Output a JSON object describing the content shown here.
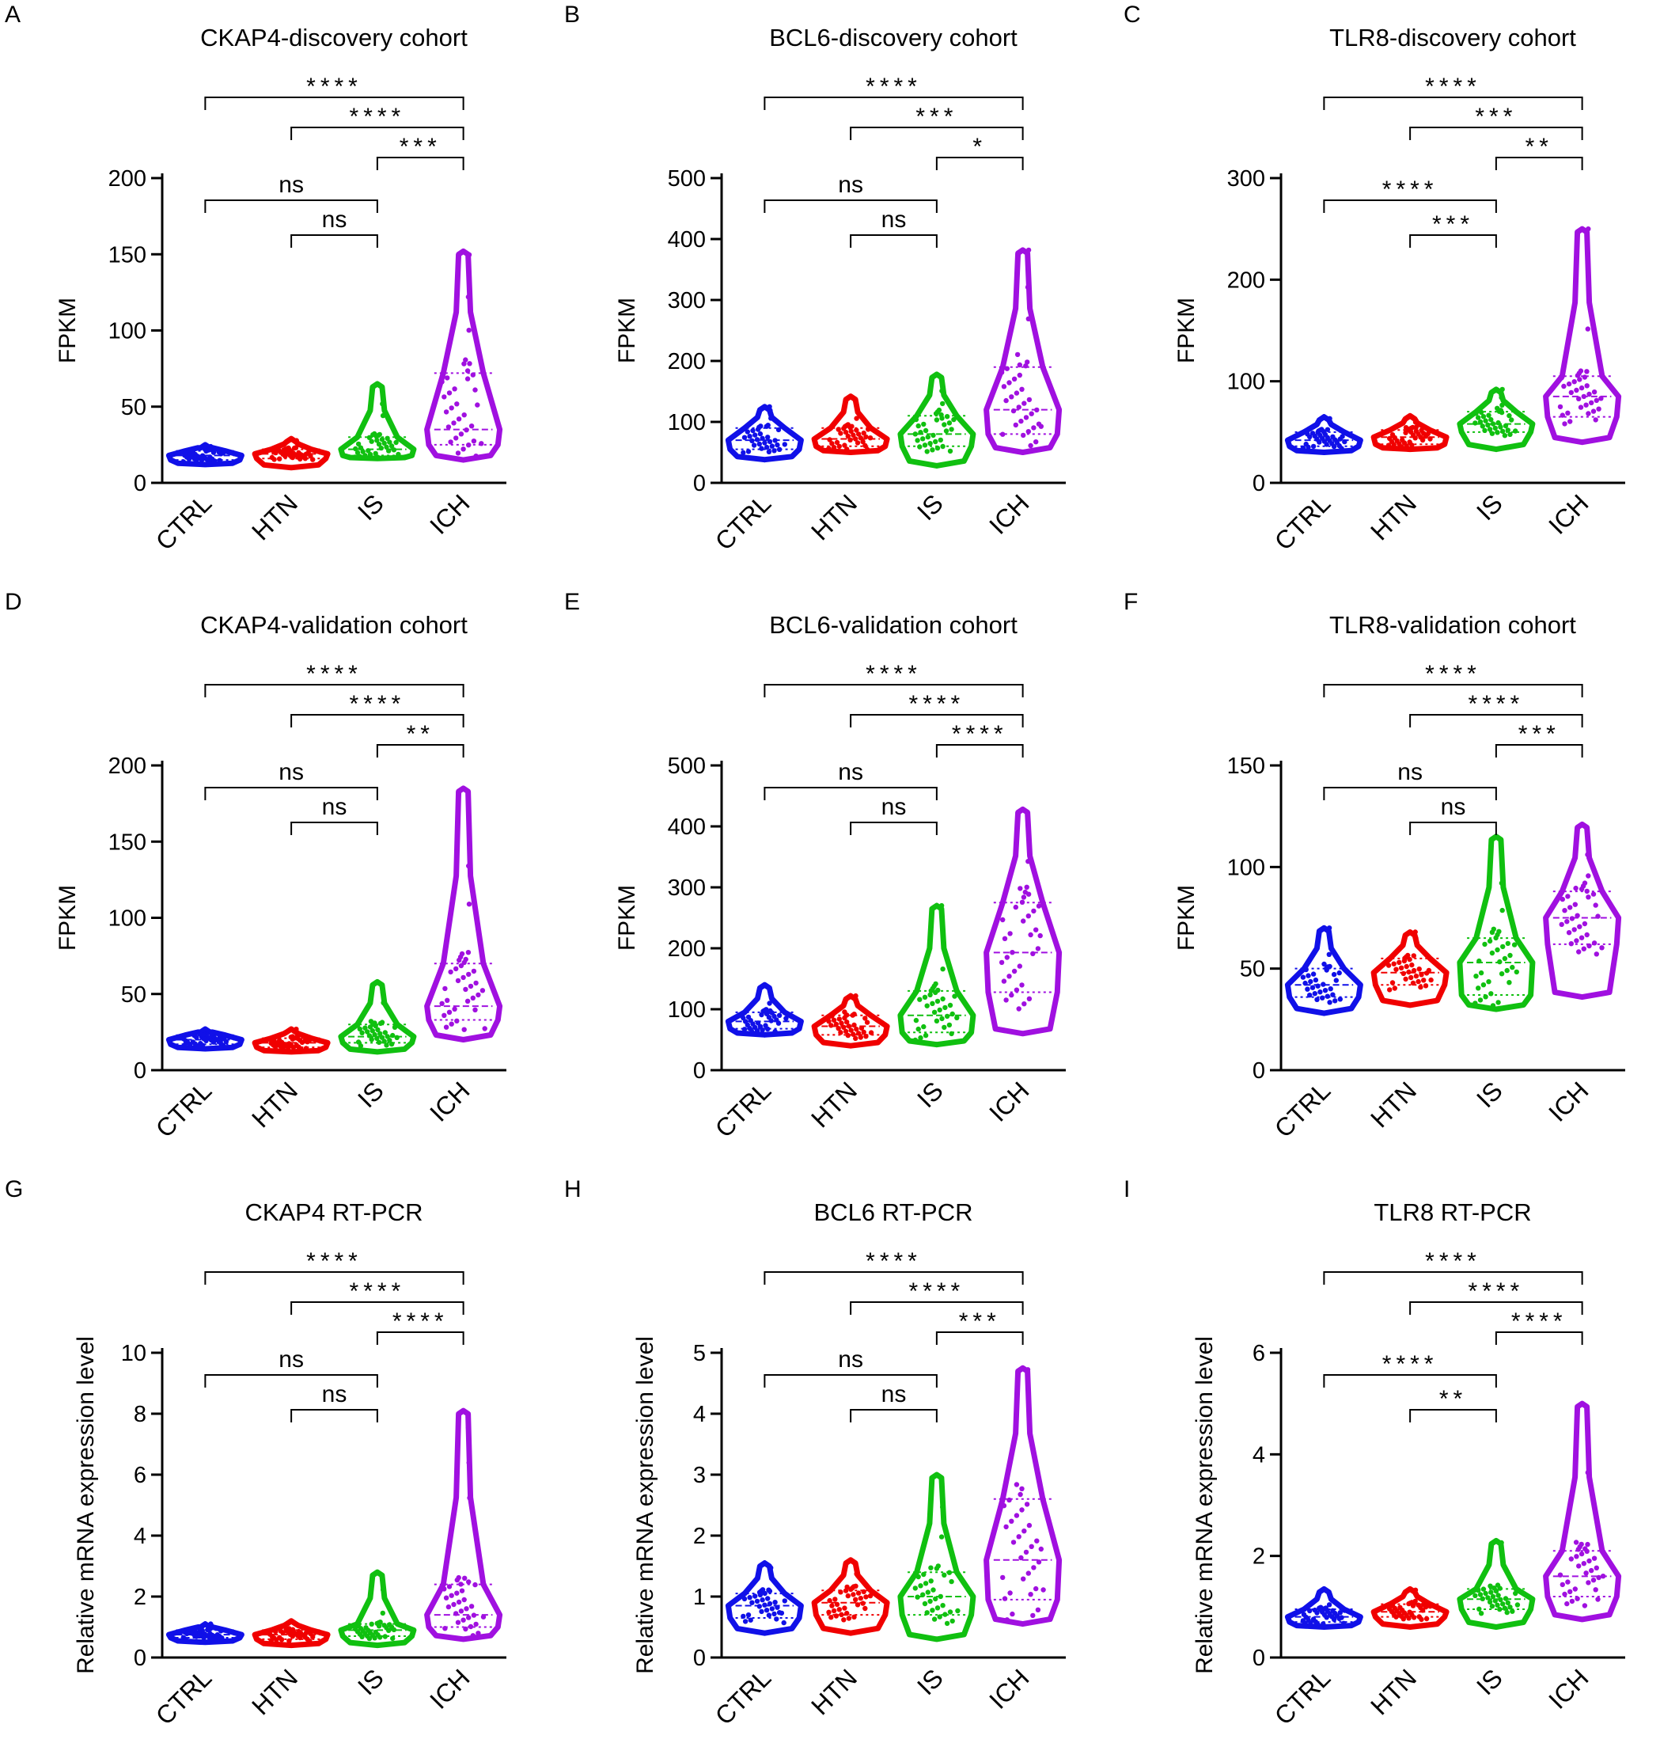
{
  "figure": {
    "groups": [
      "CTRL",
      "HTN",
      "IS",
      "ICH"
    ],
    "colors": {
      "CTRL": "#1010e8",
      "HTN": "#f00000",
      "IS": "#10c010",
      "ICH": "#a010e0"
    }
  },
  "chart_data": [
    {
      "panel": "A",
      "type": "violin",
      "title": "CKAP4-discovery cohort",
      "xlabel": "",
      "ylabel": "FPKM",
      "ylim": [
        0,
        200
      ],
      "yticks": [
        "0",
        "50",
        "100",
        "150",
        "200"
      ],
      "categories": [
        "CTRL",
        "HTN",
        "IS",
        "ICH"
      ],
      "series": [
        {
          "name": "CTRL",
          "min": 12,
          "q1": 15,
          "median": 18,
          "q3": 21,
          "max": 25
        },
        {
          "name": "HTN",
          "min": 10,
          "q1": 16,
          "median": 19,
          "q3": 22,
          "max": 29
        },
        {
          "name": "IS",
          "min": 16,
          "q1": 18,
          "median": 22,
          "q3": 30,
          "max": 65
        },
        {
          "name": "ICH",
          "min": 15,
          "q1": 25,
          "median": 35,
          "q3": 72,
          "max": 152
        }
      ],
      "comparisons": [
        {
          "from": "CTRL",
          "to": "ICH",
          "label": "****"
        },
        {
          "from": "HTN",
          "to": "ICH",
          "label": "****"
        },
        {
          "from": "IS",
          "to": "ICH",
          "label": "***"
        },
        {
          "from": "CTRL",
          "to": "IS",
          "label": "ns"
        },
        {
          "from": "HTN",
          "to": "IS",
          "label": "ns"
        }
      ]
    },
    {
      "panel": "B",
      "type": "violin",
      "title": "BCL6-discovery cohort",
      "xlabel": "",
      "ylabel": "FPKM",
      "ylim": [
        0,
        500
      ],
      "yticks": [
        "0",
        "100",
        "200",
        "300",
        "400",
        "500"
      ],
      "categories": [
        "CTRL",
        "HTN",
        "IS",
        "ICH"
      ],
      "series": [
        {
          "name": "CTRL",
          "min": 38,
          "q1": 55,
          "median": 70,
          "q3": 90,
          "max": 125
        },
        {
          "name": "HTN",
          "min": 50,
          "q1": 60,
          "median": 72,
          "q3": 90,
          "max": 142
        },
        {
          "name": "IS",
          "min": 28,
          "q1": 60,
          "median": 80,
          "q3": 110,
          "max": 178
        },
        {
          "name": "ICH",
          "min": 50,
          "q1": 80,
          "median": 120,
          "q3": 190,
          "max": 382
        }
      ],
      "comparisons": [
        {
          "from": "CTRL",
          "to": "ICH",
          "label": "****"
        },
        {
          "from": "HTN",
          "to": "ICH",
          "label": "***"
        },
        {
          "from": "IS",
          "to": "ICH",
          "label": "*"
        },
        {
          "from": "CTRL",
          "to": "IS",
          "label": "ns"
        },
        {
          "from": "HTN",
          "to": "IS",
          "label": "ns"
        }
      ]
    },
    {
      "panel": "C",
      "type": "violin",
      "title": "TLR8-discovery cohort",
      "xlabel": "",
      "ylabel": "FPKM",
      "ylim": [
        0,
        300
      ],
      "yticks": [
        "0",
        "100",
        "200",
        "300"
      ],
      "categories": [
        "CTRL",
        "HTN",
        "IS",
        "ICH"
      ],
      "series": [
        {
          "name": "CTRL",
          "min": 30,
          "q1": 36,
          "median": 42,
          "q3": 50,
          "max": 65
        },
        {
          "name": "HTN",
          "min": 33,
          "q1": 38,
          "median": 45,
          "q3": 52,
          "max": 66
        },
        {
          "name": "IS",
          "min": 33,
          "q1": 50,
          "median": 58,
          "q3": 70,
          "max": 92
        },
        {
          "name": "ICH",
          "min": 40,
          "q1": 65,
          "median": 85,
          "q3": 105,
          "max": 250
        }
      ],
      "comparisons": [
        {
          "from": "CTRL",
          "to": "ICH",
          "label": "****"
        },
        {
          "from": "HTN",
          "to": "ICH",
          "label": "***"
        },
        {
          "from": "IS",
          "to": "ICH",
          "label": "**"
        },
        {
          "from": "CTRL",
          "to": "IS",
          "label": "****"
        },
        {
          "from": "HTN",
          "to": "IS",
          "label": "***"
        }
      ]
    },
    {
      "panel": "D",
      "type": "violin",
      "title": "CKAP4-validation cohort",
      "xlabel": "",
      "ylabel": "FPKM",
      "ylim": [
        0,
        200
      ],
      "yticks": [
        "0",
        "50",
        "100",
        "150",
        "200"
      ],
      "categories": [
        "CTRL",
        "HTN",
        "IS",
        "ICH"
      ],
      "series": [
        {
          "name": "CTRL",
          "min": 14,
          "q1": 17,
          "median": 20,
          "q3": 23,
          "max": 27
        },
        {
          "name": "HTN",
          "min": 12,
          "q1": 15,
          "median": 18,
          "q3": 21,
          "max": 27
        },
        {
          "name": "IS",
          "min": 12,
          "q1": 18,
          "median": 22,
          "q3": 30,
          "max": 58
        },
        {
          "name": "ICH",
          "min": 20,
          "q1": 33,
          "median": 42,
          "q3": 70,
          "max": 185
        }
      ],
      "comparisons": [
        {
          "from": "CTRL",
          "to": "ICH",
          "label": "****"
        },
        {
          "from": "HTN",
          "to": "ICH",
          "label": "****"
        },
        {
          "from": "IS",
          "to": "ICH",
          "label": "**"
        },
        {
          "from": "CTRL",
          "to": "IS",
          "label": "ns"
        },
        {
          "from": "HTN",
          "to": "IS",
          "label": "ns"
        }
      ]
    },
    {
      "panel": "E",
      "type": "violin",
      "title": "BCL6-validation cohort",
      "xlabel": "",
      "ylabel": "FPKM",
      "ylim": [
        0,
        500
      ],
      "yticks": [
        "0",
        "100",
        "200",
        "300",
        "400",
        "500"
      ],
      "categories": [
        "CTRL",
        "HTN",
        "IS",
        "ICH"
      ],
      "series": [
        {
          "name": "CTRL",
          "min": 58,
          "q1": 68,
          "median": 80,
          "q3": 95,
          "max": 140
        },
        {
          "name": "HTN",
          "min": 40,
          "q1": 58,
          "median": 72,
          "q3": 90,
          "max": 122
        },
        {
          "name": "IS",
          "min": 42,
          "q1": 62,
          "median": 90,
          "q3": 130,
          "max": 270
        },
        {
          "name": "ICH",
          "min": 60,
          "q1": 128,
          "median": 193,
          "q3": 275,
          "max": 428
        }
      ],
      "comparisons": [
        {
          "from": "CTRL",
          "to": "ICH",
          "label": "****"
        },
        {
          "from": "HTN",
          "to": "ICH",
          "label": "****"
        },
        {
          "from": "IS",
          "to": "ICH",
          "label": "****"
        },
        {
          "from": "CTRL",
          "to": "IS",
          "label": "ns"
        },
        {
          "from": "HTN",
          "to": "IS",
          "label": "ns"
        }
      ]
    },
    {
      "panel": "F",
      "type": "violin",
      "title": "TLR8-validation cohort",
      "xlabel": "",
      "ylabel": "FPKM",
      "ylim": [
        0,
        150
      ],
      "yticks": [
        "0",
        "50",
        "100",
        "150"
      ],
      "categories": [
        "CTRL",
        "HTN",
        "IS",
        "ICH"
      ],
      "series": [
        {
          "name": "CTRL",
          "min": 28,
          "q1": 36,
          "median": 42,
          "q3": 50,
          "max": 70
        },
        {
          "name": "HTN",
          "min": 32,
          "q1": 42,
          "median": 48,
          "q3": 55,
          "max": 68
        },
        {
          "name": "IS",
          "min": 30,
          "q1": 37,
          "median": 53,
          "q3": 65,
          "max": 115
        },
        {
          "name": "ICH",
          "min": 36,
          "q1": 62,
          "median": 75,
          "q3": 88,
          "max": 121
        }
      ],
      "comparisons": [
        {
          "from": "CTRL",
          "to": "ICH",
          "label": "****"
        },
        {
          "from": "HTN",
          "to": "ICH",
          "label": "****"
        },
        {
          "from": "IS",
          "to": "ICH",
          "label": "***"
        },
        {
          "from": "CTRL",
          "to": "IS",
          "label": "ns"
        },
        {
          "from": "HTN",
          "to": "IS",
          "label": "ns"
        }
      ]
    },
    {
      "panel": "G",
      "type": "violin",
      "title": "CKAP4  RT-PCR",
      "xlabel": "",
      "ylabel": "Relative mRNA expression level",
      "ylim": [
        0,
        10
      ],
      "yticks": [
        "0",
        "2",
        "4",
        "6",
        "8",
        "10"
      ],
      "categories": [
        "CTRL",
        "HTN",
        "IS",
        "ICH"
      ],
      "series": [
        {
          "name": "CTRL",
          "min": 0.5,
          "q1": 0.65,
          "median": 0.75,
          "q3": 0.9,
          "max": 1.1
        },
        {
          "name": "HTN",
          "min": 0.4,
          "q1": 0.6,
          "median": 0.75,
          "q3": 0.9,
          "max": 1.2
        },
        {
          "name": "IS",
          "min": 0.4,
          "q1": 0.7,
          "median": 0.9,
          "q3": 1.1,
          "max": 2.8
        },
        {
          "name": "ICH",
          "min": 0.6,
          "q1": 1.0,
          "median": 1.4,
          "q3": 2.4,
          "max": 8.1
        }
      ],
      "comparisons": [
        {
          "from": "CTRL",
          "to": "ICH",
          "label": "****"
        },
        {
          "from": "HTN",
          "to": "ICH",
          "label": "****"
        },
        {
          "from": "IS",
          "to": "ICH",
          "label": "****"
        },
        {
          "from": "CTRL",
          "to": "IS",
          "label": "ns"
        },
        {
          "from": "HTN",
          "to": "IS",
          "label": "ns"
        }
      ]
    },
    {
      "panel": "H",
      "type": "violin",
      "title": "BCL6  RT-PCR",
      "xlabel": "",
      "ylabel": "Relative mRNA expression level",
      "ylim": [
        0,
        5
      ],
      "yticks": [
        "0",
        "1",
        "2",
        "3",
        "4",
        "5"
      ],
      "categories": [
        "CTRL",
        "HTN",
        "IS",
        "ICH"
      ],
      "series": [
        {
          "name": "CTRL",
          "min": 0.4,
          "q1": 0.65,
          "median": 0.85,
          "q3": 1.05,
          "max": 1.55
        },
        {
          "name": "HTN",
          "min": 0.4,
          "q1": 0.7,
          "median": 0.9,
          "q3": 1.1,
          "max": 1.6
        },
        {
          "name": "IS",
          "min": 0.3,
          "q1": 0.7,
          "median": 1.0,
          "q3": 1.4,
          "max": 3.0
        },
        {
          "name": "ICH",
          "min": 0.55,
          "q1": 0.95,
          "median": 1.6,
          "q3": 2.6,
          "max": 4.75
        }
      ],
      "comparisons": [
        {
          "from": "CTRL",
          "to": "ICH",
          "label": "****"
        },
        {
          "from": "HTN",
          "to": "ICH",
          "label": "****"
        },
        {
          "from": "IS",
          "to": "ICH",
          "label": "***"
        },
        {
          "from": "CTRL",
          "to": "IS",
          "label": "ns"
        },
        {
          "from": "HTN",
          "to": "IS",
          "label": "ns"
        }
      ]
    },
    {
      "panel": "I",
      "type": "violin",
      "title": "TLR8  RT-PCR",
      "xlabel": "",
      "ylabel": "Relative mRNA expression level",
      "ylim": [
        0,
        6
      ],
      "yticks": [
        "0",
        "2",
        "4",
        "6"
      ],
      "categories": [
        "CTRL",
        "HTN",
        "IS",
        "ICH"
      ],
      "series": [
        {
          "name": "CTRL",
          "min": 0.6,
          "q1": 0.7,
          "median": 0.8,
          "q3": 0.95,
          "max": 1.35
        },
        {
          "name": "HTN",
          "min": 0.6,
          "q1": 0.8,
          "median": 0.9,
          "q3": 1.05,
          "max": 1.35
        },
        {
          "name": "IS",
          "min": 0.6,
          "q1": 0.95,
          "median": 1.15,
          "q3": 1.35,
          "max": 2.3
        },
        {
          "name": "ICH",
          "min": 0.75,
          "q1": 1.2,
          "median": 1.6,
          "q3": 2.1,
          "max": 5.0
        }
      ],
      "comparisons": [
        {
          "from": "CTRL",
          "to": "ICH",
          "label": "****"
        },
        {
          "from": "HTN",
          "to": "ICH",
          "label": "****"
        },
        {
          "from": "IS",
          "to": "ICH",
          "label": "****"
        },
        {
          "from": "CTRL",
          "to": "IS",
          "label": "****"
        },
        {
          "from": "HTN",
          "to": "IS",
          "label": "**"
        }
      ]
    }
  ]
}
